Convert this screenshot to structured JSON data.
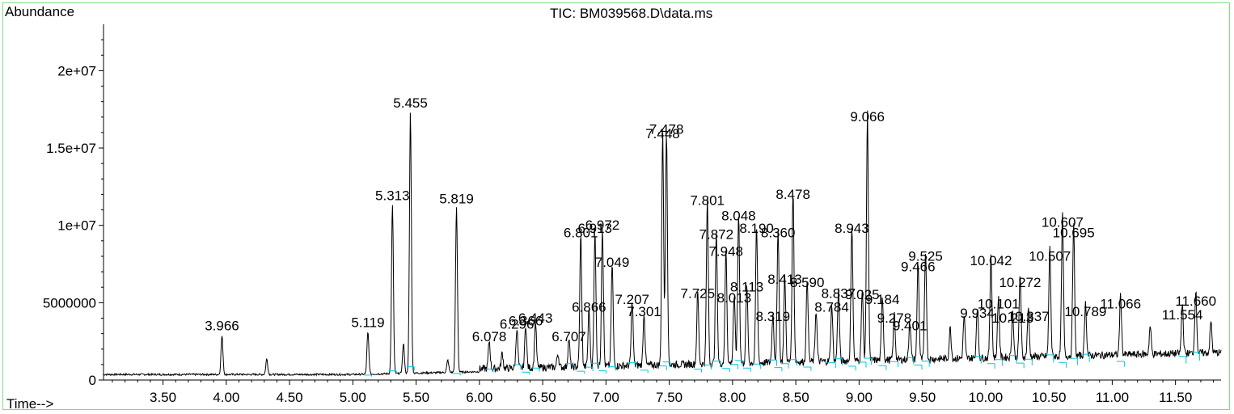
{
  "chart_data": {
    "type": "line",
    "title": "TIC: BM039568.D\\data.ms",
    "ylabel": "Abundance",
    "xlabel": "Time-->",
    "xlim": [
      3.03,
      11.86
    ],
    "ylim": [
      0,
      23000000
    ],
    "x_ticks": [
      3.5,
      4.0,
      4.5,
      5.0,
      5.5,
      6.0,
      6.5,
      7.0,
      7.5,
      8.0,
      8.5,
      9.0,
      9.5,
      10.0,
      10.5,
      11.0,
      11.5
    ],
    "x_tick_labels": [
      "3.50",
      "4.00",
      "4.50",
      "5.00",
      "5.50",
      "6.00",
      "6.50",
      "7.00",
      "7.50",
      "8.00",
      "8.50",
      "9.00",
      "9.50",
      "10.00",
      "10.50",
      "11.00",
      "11.50"
    ],
    "y_ticks": [
      0,
      5000000,
      10000000,
      15000000,
      20000000
    ],
    "y_tick_labels": [
      "0",
      "5000000",
      "1e+07",
      "1.5e+07",
      "2e+07"
    ],
    "colors": {
      "trace": "#000000",
      "baseline": "#00c8e0",
      "frame": "#7fe07f"
    },
    "grid": false,
    "baseline_level": 300000,
    "series": [
      {
        "peaks": [
          {
            "x": 3.966,
            "y": 2800000,
            "label": "3.966"
          },
          {
            "x": 4.32,
            "y": 1300000
          },
          {
            "x": 5.119,
            "y": 3000000,
            "label": "5.119"
          },
          {
            "x": 5.313,
            "y": 11200000,
            "label": "5.313"
          },
          {
            "x": 5.4,
            "y": 2200000
          },
          {
            "x": 5.455,
            "y": 17200000,
            "label": "5.455"
          },
          {
            "x": 5.75,
            "y": 1100000
          },
          {
            "x": 5.819,
            "y": 11000000,
            "label": "5.819"
          },
          {
            "x": 6.078,
            "y": 2100000,
            "label": "6.078"
          },
          {
            "x": 6.18,
            "y": 1300000
          },
          {
            "x": 6.296,
            "y": 2900000,
            "label": "6.296"
          },
          {
            "x": 6.366,
            "y": 3100000,
            "label": "6.366"
          },
          {
            "x": 6.443,
            "y": 3300000,
            "label": "6.443"
          },
          {
            "x": 6.62,
            "y": 1200000
          },
          {
            "x": 6.707,
            "y": 2100000,
            "label": "6.707"
          },
          {
            "x": 6.801,
            "y": 8800000,
            "label": "6.801"
          },
          {
            "x": 6.866,
            "y": 4000000,
            "label": "6.866"
          },
          {
            "x": 6.913,
            "y": 9100000,
            "label": "6.913"
          },
          {
            "x": 6.972,
            "y": 9300000,
            "label": "6.972"
          },
          {
            "x": 7.049,
            "y": 6900000,
            "label": "7.049"
          },
          {
            "x": 7.207,
            "y": 4500000,
            "label": "7.207"
          },
          {
            "x": 7.301,
            "y": 3700000,
            "label": "7.301"
          },
          {
            "x": 7.448,
            "y": 15200000,
            "label": "7.448"
          },
          {
            "x": 7.478,
            "y": 15500000,
            "label": "7.478"
          },
          {
            "x": 7.725,
            "y": 4900000,
            "label": "7.725"
          },
          {
            "x": 7.801,
            "y": 10900000,
            "label": "7.801"
          },
          {
            "x": 7.872,
            "y": 8700000,
            "label": "7.872"
          },
          {
            "x": 7.948,
            "y": 7600000,
            "label": "7.948"
          },
          {
            "x": 8.013,
            "y": 4600000,
            "label": "8.013"
          },
          {
            "x": 8.048,
            "y": 9900000,
            "label": "8.048"
          },
          {
            "x": 8.113,
            "y": 5300000,
            "label": "8.113"
          },
          {
            "x": 8.19,
            "y": 9100000,
            "label": "8.190"
          },
          {
            "x": 8.319,
            "y": 3400000,
            "label": "8.319"
          },
          {
            "x": 8.36,
            "y": 8800000,
            "label": "8.360"
          },
          {
            "x": 8.413,
            "y": 5800000,
            "label": "8.413"
          },
          {
            "x": 8.478,
            "y": 11300000,
            "label": "8.478"
          },
          {
            "x": 8.59,
            "y": 5600000,
            "label": "8.590"
          },
          {
            "x": 8.66,
            "y": 3600000
          },
          {
            "x": 8.784,
            "y": 4000000,
            "label": "8.784"
          },
          {
            "x": 8.837,
            "y": 4900000,
            "label": "8.837"
          },
          {
            "x": 8.943,
            "y": 9100000,
            "label": "8.943"
          },
          {
            "x": 9.025,
            "y": 4800000,
            "label": "9.025"
          },
          {
            "x": 9.066,
            "y": 16300000,
            "label": "9.066"
          },
          {
            "x": 9.184,
            "y": 4500000,
            "label": "9.184"
          },
          {
            "x": 9.278,
            "y": 3300000,
            "label": "9.278"
          },
          {
            "x": 9.401,
            "y": 2800000,
            "label": "9.401"
          },
          {
            "x": 9.466,
            "y": 6600000,
            "label": "9.466"
          },
          {
            "x": 9.525,
            "y": 7300000,
            "label": "9.525"
          },
          {
            "x": 9.72,
            "y": 2300000
          },
          {
            "x": 9.83,
            "y": 3000000
          },
          {
            "x": 9.934,
            "y": 3600000,
            "label": "9.934"
          },
          {
            "x": 10.042,
            "y": 7000000,
            "label": "10.042"
          },
          {
            "x": 10.101,
            "y": 4200000,
            "label": "10.101"
          },
          {
            "x": 10.213,
            "y": 3300000,
            "label": "10.213"
          },
          {
            "x": 10.272,
            "y": 5600000,
            "label": "10.272"
          },
          {
            "x": 10.337,
            "y": 3400000,
            "label": "10.337"
          },
          {
            "x": 10.507,
            "y": 7300000,
            "label": "10.507"
          },
          {
            "x": 10.607,
            "y": 9500000,
            "label": "10.607"
          },
          {
            "x": 10.695,
            "y": 8800000,
            "label": "10.695"
          },
          {
            "x": 10.789,
            "y": 3700000,
            "label": "10.789"
          },
          {
            "x": 11.066,
            "y": 4200000,
            "label": "11.066"
          },
          {
            "x": 11.3,
            "y": 2100000
          },
          {
            "x": 11.554,
            "y": 3500000,
            "label": "11.554"
          },
          {
            "x": 11.66,
            "y": 4400000,
            "label": "11.660"
          },
          {
            "x": 11.78,
            "y": 2300000
          }
        ]
      }
    ]
  }
}
